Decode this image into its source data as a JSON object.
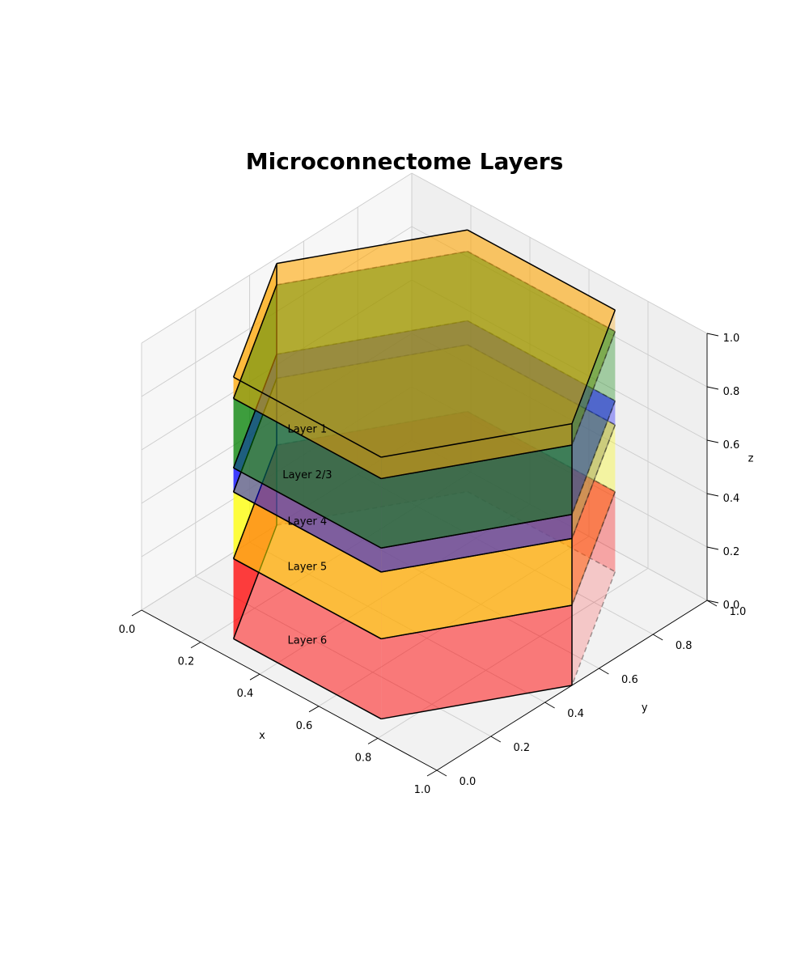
{
  "chart_data": {
    "type": "3d-stacked-prism",
    "title": "Microconnectome Layers",
    "xlabel": "x",
    "ylabel": "y",
    "zlabel": "z",
    "xlim": [
      0,
      1
    ],
    "ylim": [
      0,
      1
    ],
    "zlim": [
      0,
      1
    ],
    "x_ticks": [
      "0.0",
      "0.2",
      "0.4",
      "0.6",
      "0.8",
      "1.0"
    ],
    "y_ticks": [
      "0.0",
      "0.2",
      "0.4",
      "0.6",
      "0.8",
      "1.0"
    ],
    "z_ticks": [
      "0.0",
      "0.2",
      "0.4",
      "0.6",
      "0.8",
      "1.0"
    ],
    "grid": true,
    "hexagon": {
      "center": [
        0.5,
        0.5
      ],
      "radius": 0.5,
      "vertex_angles_deg": [
        0,
        60,
        120,
        180,
        240,
        300
      ]
    },
    "layers": [
      {
        "name": "Layer 6",
        "z_bottom": 0.0,
        "z_top": 0.3,
        "color": "#ff0000"
      },
      {
        "name": "Layer 5",
        "z_bottom": 0.3,
        "z_top": 0.55,
        "color": "#ffff00"
      },
      {
        "name": "Layer 4",
        "z_bottom": 0.55,
        "z_top": 0.64,
        "color": "#0000ff"
      },
      {
        "name": "Layer 2/3",
        "z_bottom": 0.64,
        "z_top": 0.9,
        "color": "#008000"
      },
      {
        "name": "Layer 1",
        "z_bottom": 0.9,
        "z_top": 0.98,
        "color": "#ffa500"
      }
    ],
    "face_alpha": 0.5
  }
}
